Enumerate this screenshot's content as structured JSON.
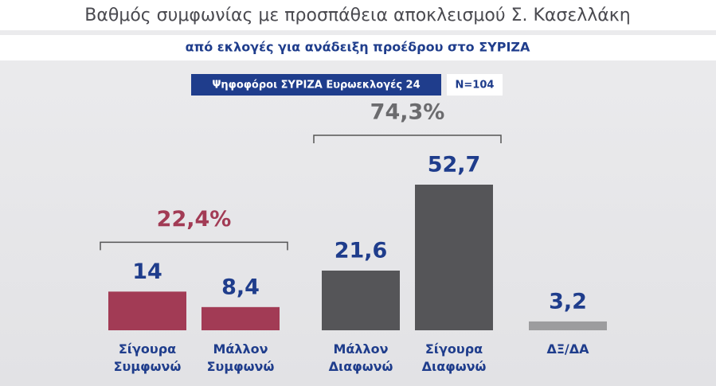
{
  "chart_data": {
    "type": "bar",
    "title": "Βαθμός συμφωνίας με προσπάθεια αποκλεισμού Σ. Κασελλάκη",
    "subtitle": "από εκλογές για ανάδειξη προέδρου στο ΣΥΡΙΖΑ",
    "badge": "Ψηφοφόροι ΣΥΡΙΖΑ Ευρωεκλογές 24",
    "sample": "N=104",
    "categories": [
      "Σίγουρα Συμφωνώ",
      "Μάλλον Συμφωνώ",
      "Μάλλον Διαφωνώ",
      "Σίγουρα Διαφωνώ",
      "ΔΞ/ΔΑ"
    ],
    "values": [
      14,
      8.4,
      21.6,
      52.7,
      3.2
    ],
    "value_labels": [
      "14",
      "8,4",
      "21,6",
      "52,7",
      "3,2"
    ],
    "colors": [
      "#a23b55",
      "#a23b55",
      "#555558",
      "#555558",
      "#9c9c9e"
    ],
    "groups": [
      {
        "label": "22,4%",
        "value": 22.4,
        "from": 0,
        "to": 1,
        "color": "#a23b55"
      },
      {
        "label": "74,3%",
        "value": 74.3,
        "from": 2,
        "to": 3,
        "color": "#6b6b6e"
      }
    ]
  }
}
